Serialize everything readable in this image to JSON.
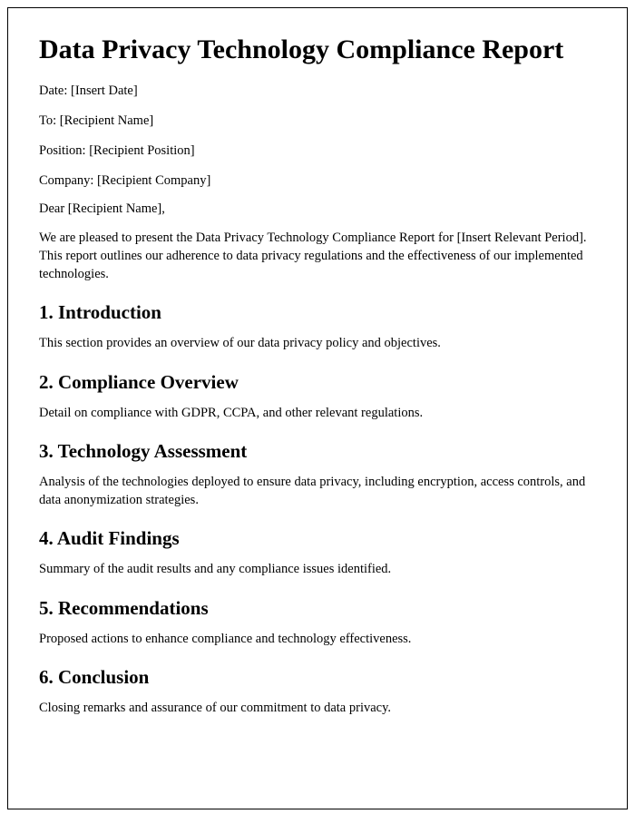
{
  "title": "Data Privacy Technology Compliance Report",
  "meta": {
    "date_label": "Date:",
    "date_value": "[Insert Date]",
    "to_label": "To:",
    "to_value": "[Recipient Name]",
    "position_label": "Position:",
    "position_value": "[Recipient Position]",
    "company_label": "Company:",
    "company_value": "[Recipient Company]"
  },
  "salutation": "Dear [Recipient Name],",
  "intro": "We are pleased to present the Data Privacy Technology Compliance Report for [Insert Relevant Period]. This report outlines our adherence to data privacy regulations and the effectiveness of our implemented technologies.",
  "sections": [
    {
      "heading": "1. Introduction",
      "body": "This section provides an overview of our data privacy policy and objectives."
    },
    {
      "heading": "2. Compliance Overview",
      "body": "Detail on compliance with GDPR, CCPA, and other relevant regulations."
    },
    {
      "heading": "3. Technology Assessment",
      "body": "Analysis of the technologies deployed to ensure data privacy, including encryption, access controls, and data anonymization strategies."
    },
    {
      "heading": "4. Audit Findings",
      "body": "Summary of the audit results and any compliance issues identified."
    },
    {
      "heading": "5. Recommendations",
      "body": "Proposed actions to enhance compliance and technology effectiveness."
    },
    {
      "heading": "6. Conclusion",
      "body": "Closing remarks and assurance of our commitment to data privacy."
    }
  ],
  "styling": {
    "page_border_color": "#000000",
    "background_color": "#ffffff",
    "text_color": "#000000",
    "title_fontsize": 30,
    "heading_fontsize": 21,
    "body_fontsize": 14.5,
    "font_family": "Georgia, Times New Roman, serif"
  }
}
